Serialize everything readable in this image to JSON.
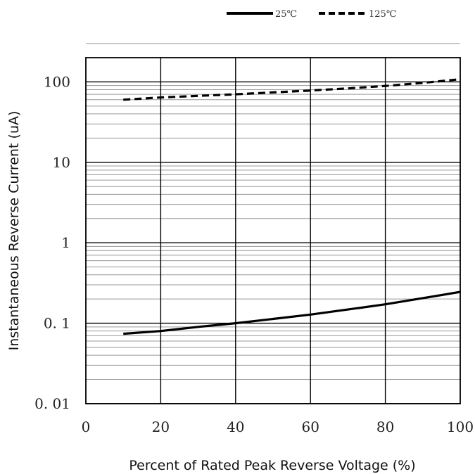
{
  "chart_data": {
    "type": "line",
    "title": "",
    "xlabel": "Percent of Rated Peak  Reverse Voltage (%)",
    "ylabel": "Instantaneous Reverse Current (uA)",
    "xlim": [
      0,
      100
    ],
    "ylim": [
      0.01,
      300
    ],
    "y_scale": "log",
    "x_ticks": [
      "0",
      "20",
      "40",
      "60",
      "80",
      "100"
    ],
    "y_ticks": [
      "0. 01",
      "0. 1",
      "1",
      "10",
      "100"
    ],
    "grid": true,
    "legend_position": "top-right",
    "series": [
      {
        "name": "25℃",
        "line_style": "solid",
        "x": [
          10,
          20,
          30,
          40,
          50,
          60,
          70,
          80,
          90,
          100
        ],
        "y": [
          0.074,
          0.08,
          0.09,
          0.1,
          0.113,
          0.128,
          0.148,
          0.172,
          0.205,
          0.245
        ]
      },
      {
        "name": "125℃",
        "line_style": "dashed",
        "x": [
          10,
          20,
          30,
          40,
          50,
          60,
          70,
          80,
          90,
          100
        ],
        "y": [
          60,
          64,
          67,
          70,
          74,
          78,
          83,
          89,
          97,
          108
        ]
      }
    ]
  }
}
